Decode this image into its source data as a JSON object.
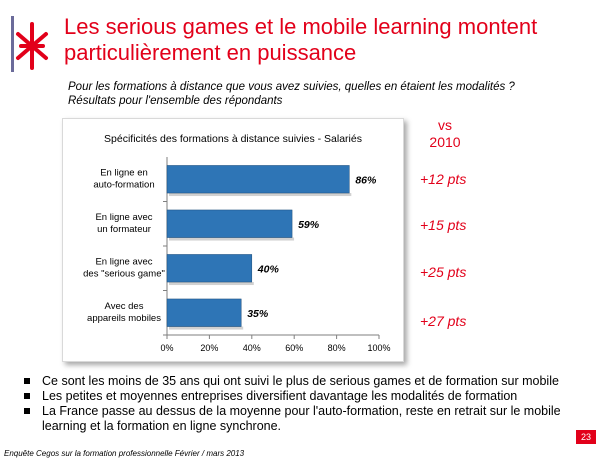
{
  "title": {
    "line1": "Les serious games et le mobile learning montent",
    "line2": "particulièrement en puissance"
  },
  "question": {
    "line1": "Pour les formations à distance que vous avez suivies, quelles en étaient les modalités ?",
    "line2": "Résultats pour l'ensemble des répondants"
  },
  "comparison": {
    "vs_label": "vs",
    "year": "2010",
    "deltas": [
      "+12 pts",
      "+15 pts",
      "+25 pts",
      "+27 pts"
    ]
  },
  "chart_data": {
    "type": "bar",
    "orientation": "horizontal",
    "title": "Spécificités des formations à distance suivies - Salariés",
    "categories": [
      [
        "En ligne en",
        "auto-formation"
      ],
      [
        "En ligne avec",
        "un formateur"
      ],
      [
        "En ligne avec",
        "des \"serious game\""
      ],
      [
        "Avec des",
        "appareils mobiles"
      ]
    ],
    "values": [
      86,
      59,
      40,
      35
    ],
    "value_labels": [
      "86%",
      "59%",
      "40%",
      "35%"
    ],
    "xlim": [
      0,
      100
    ],
    "x_ticks": [
      "0%",
      "20%",
      "40%",
      "60%",
      "80%",
      "100%"
    ],
    "bar_color": "#2e75b6",
    "grid": false
  },
  "bullets": [
    "Ce sont les moins de 35 ans qui ont suivi le plus de serious games et de formation sur mobile",
    "Les petites et moyennes entreprises diversifient davantage les modalités de formation",
    "La France passe au dessus de la moyenne pour l'auto-formation, reste en retrait sur le mobile learning et la formation en ligne synchrone."
  ],
  "footer": "Enquête Cegos sur la formation professionnelle Février / mars 2013",
  "page_number": "23",
  "colors": {
    "accent": "#e2001a",
    "bar": "#2e75b6"
  }
}
